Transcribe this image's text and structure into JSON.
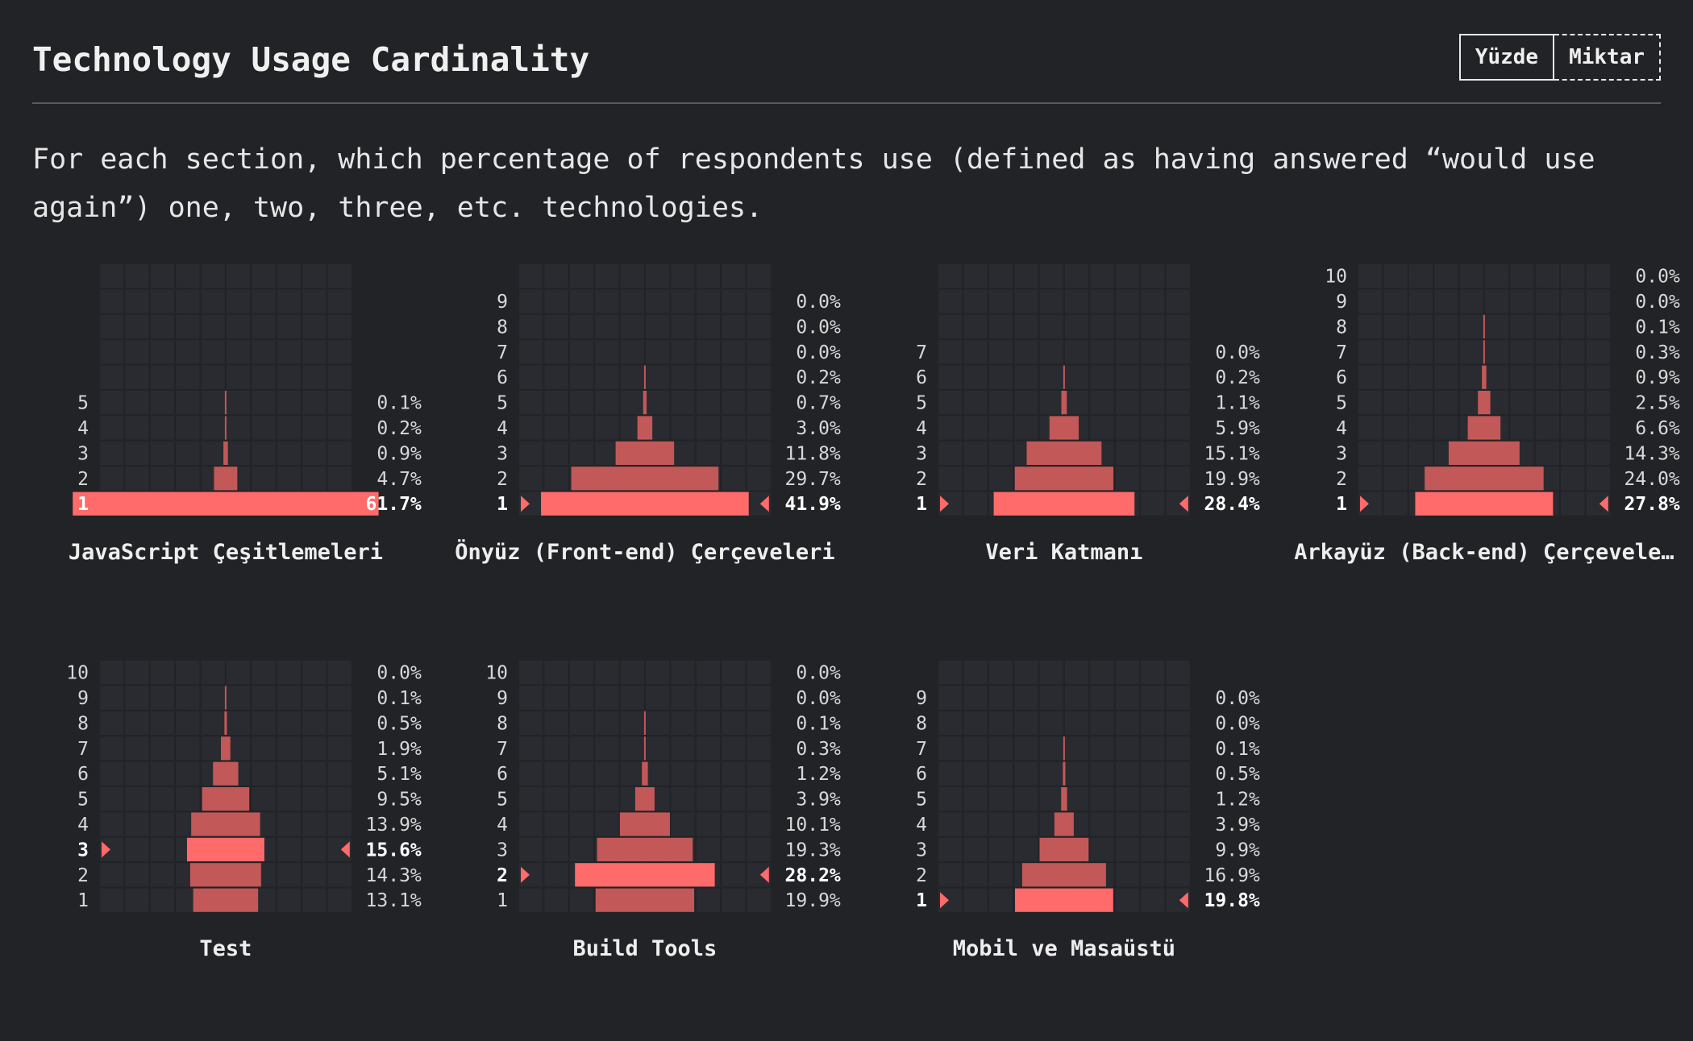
{
  "header": {
    "title": "Technology Usage Cardinality",
    "toggle": {
      "percent_label": "Yüzde",
      "count_label": "Miktar",
      "active": "percent"
    }
  },
  "description": "For each section, which percentage of respondents use (defined as having answered “would use again”) one, two, three, etc. technologies.",
  "colors": {
    "bar": "#c35858",
    "bar_highlight": "#ff6b6b",
    "grid_cell": "#2a2b30",
    "background": "#222327"
  },
  "chart_data": [
    {
      "type": "bar",
      "title": "JavaScript Çeşitlemeleri",
      "display_title": "JavaScript Çeşitlemeleri",
      "categories": [
        "1",
        "2",
        "3",
        "4",
        "5"
      ],
      "values": [
        61.7,
        4.7,
        0.9,
        0.2,
        0.1
      ],
      "value_labels": [
        "61.7%",
        "4.7%",
        "0.9%",
        "0.2%",
        "0.1%"
      ],
      "highlight_index": 0,
      "rows_total": 10
    },
    {
      "type": "bar",
      "title": "Önyüz (Front-end) Çerçeveleri",
      "display_title": "Önyüz (Front-end) Çerçeveleri",
      "categories": [
        "1",
        "2",
        "3",
        "4",
        "5",
        "6",
        "7",
        "8",
        "9"
      ],
      "values": [
        41.9,
        29.7,
        11.8,
        3.0,
        0.7,
        0.2,
        0.0,
        0.0,
        0.0
      ],
      "value_labels": [
        "41.9%",
        "29.7%",
        "11.8%",
        "3.0%",
        "0.7%",
        "0.2%",
        "0.0%",
        "0.0%",
        "0.0%"
      ],
      "highlight_index": 0,
      "rows_total": 10
    },
    {
      "type": "bar",
      "title": "Veri Katmanı",
      "display_title": "Veri Katmanı",
      "categories": [
        "1",
        "2",
        "3",
        "4",
        "5",
        "6",
        "7"
      ],
      "values": [
        28.4,
        19.9,
        15.1,
        5.9,
        1.1,
        0.2,
        0.0
      ],
      "value_labels": [
        "28.4%",
        "19.9%",
        "15.1%",
        "5.9%",
        "1.1%",
        "0.2%",
        "0.0%"
      ],
      "highlight_index": 0,
      "rows_total": 10
    },
    {
      "type": "bar",
      "title": "Arkayüz (Back-end) Çerçeveleri",
      "display_title": "Arkayüz (Back-end) Çerçevele…",
      "categories": [
        "1",
        "2",
        "3",
        "4",
        "5",
        "6",
        "7",
        "8",
        "9",
        "10"
      ],
      "values": [
        27.8,
        24.0,
        14.3,
        6.6,
        2.5,
        0.9,
        0.3,
        0.1,
        0.0,
        0.0
      ],
      "value_labels": [
        "27.8%",
        "24.0%",
        "14.3%",
        "6.6%",
        "2.5%",
        "0.9%",
        "0.3%",
        "0.1%",
        "0.0%",
        "0.0%"
      ],
      "highlight_index": 0,
      "rows_total": 10
    },
    {
      "type": "bar",
      "title": "Test",
      "display_title": "Test",
      "categories": [
        "1",
        "2",
        "3",
        "4",
        "5",
        "6",
        "7",
        "8",
        "9",
        "10"
      ],
      "values": [
        13.1,
        14.3,
        15.6,
        13.9,
        9.5,
        5.1,
        1.9,
        0.5,
        0.1,
        0.0
      ],
      "value_labels": [
        "13.1%",
        "14.3%",
        "15.6%",
        "13.9%",
        "9.5%",
        "5.1%",
        "1.9%",
        "0.5%",
        "0.1%",
        "0.0%"
      ],
      "highlight_index": 2,
      "rows_total": 10
    },
    {
      "type": "bar",
      "title": "Build Tools",
      "display_title": "Build Tools",
      "categories": [
        "1",
        "2",
        "3",
        "4",
        "5",
        "6",
        "7",
        "8",
        "9",
        "10"
      ],
      "values": [
        19.9,
        28.2,
        19.3,
        10.1,
        3.9,
        1.2,
        0.3,
        0.1,
        0.0,
        0.0
      ],
      "value_labels": [
        "19.9%",
        "28.2%",
        "19.3%",
        "10.1%",
        "3.9%",
        "1.2%",
        "0.3%",
        "0.1%",
        "0.0%",
        "0.0%"
      ],
      "highlight_index": 1,
      "rows_total": 10
    },
    {
      "type": "bar",
      "title": "Mobil ve Masaüstü",
      "display_title": "Mobil ve Masaüstü",
      "categories": [
        "1",
        "2",
        "3",
        "4",
        "5",
        "6",
        "7",
        "8",
        "9"
      ],
      "values": [
        19.8,
        16.9,
        9.9,
        3.9,
        1.2,
        0.5,
        0.1,
        0.0,
        0.0
      ],
      "value_labels": [
        "19.8%",
        "16.9%",
        "9.9%",
        "3.9%",
        "1.2%",
        "0.5%",
        "0.1%",
        "0.0%",
        "0.0%"
      ],
      "highlight_index": 0,
      "rows_total": 10
    }
  ]
}
